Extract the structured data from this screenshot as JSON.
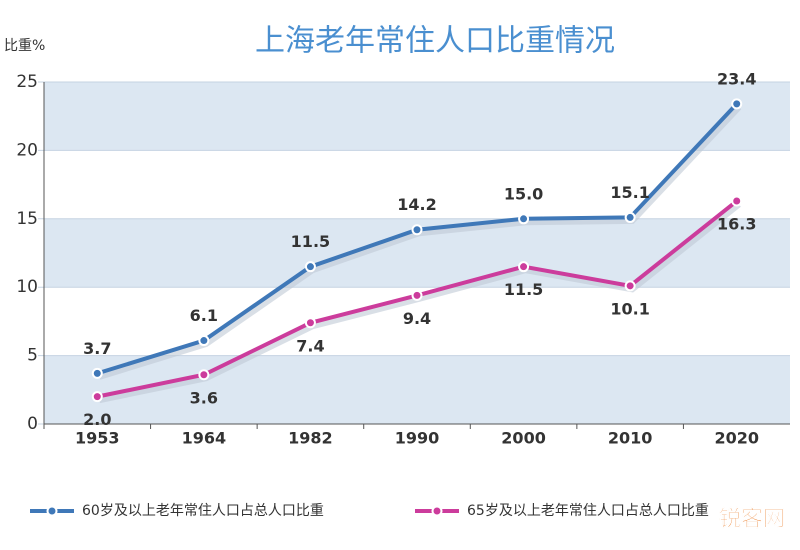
{
  "chart_data": {
    "type": "line",
    "title": "上海老年常住人口比重情况",
    "y_label": "比重%",
    "categories": [
      "1953",
      "1964",
      "1982",
      "1990",
      "2000",
      "2010",
      "2020"
    ],
    "series": [
      {
        "name": "60岁及以上老年常住人口占总人口比重",
        "color": "#3f78b8",
        "values": [
          3.7,
          6.1,
          11.5,
          14.2,
          15.0,
          15.1,
          23.4
        ],
        "value_labels": [
          "3.7",
          "6.1",
          "11.5",
          "14.2",
          "15.0",
          "15.1",
          "23.4"
        ]
      },
      {
        "name": "65岁及以上老年常住人口占总人口比重",
        "color": "#cc3c9c",
        "values": [
          2.0,
          3.6,
          7.4,
          9.4,
          11.5,
          10.1,
          16.3
        ],
        "value_labels": [
          "2.0",
          "3.6",
          "7.4",
          "9.4",
          "11.5",
          "10.1",
          "16.3"
        ]
      }
    ],
    "ylim": [
      0,
      25
    ],
    "yticks": [
      0,
      5,
      10,
      15,
      20,
      25
    ],
    "grid": true,
    "watermark": "锐客网"
  }
}
